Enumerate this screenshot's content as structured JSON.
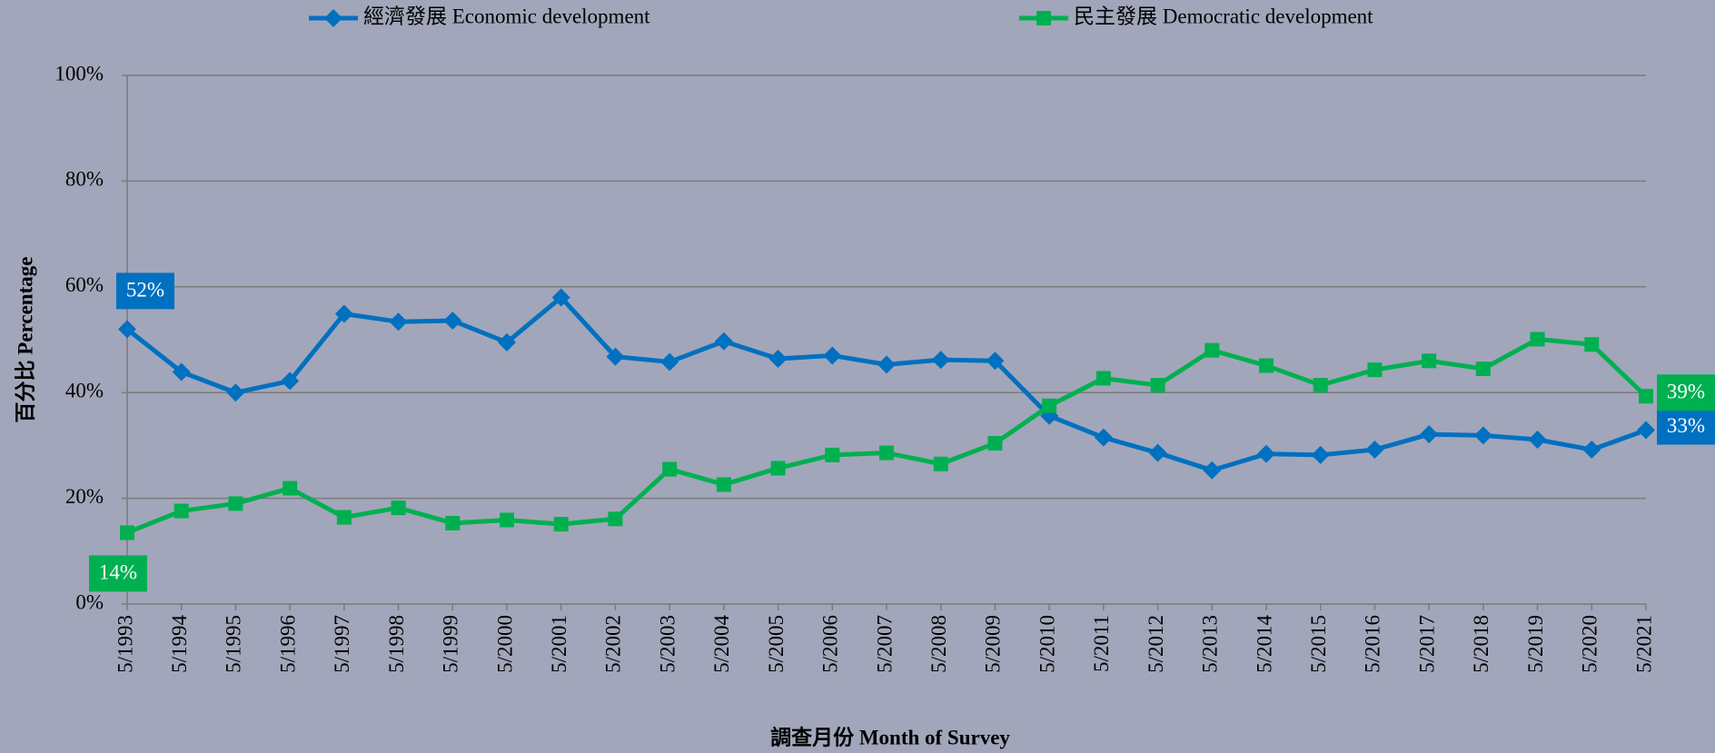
{
  "chart_data": {
    "type": "line",
    "x_label": "調查月份 Month of Survey",
    "y_label": "百分比 Percentage",
    "categories": [
      "5/1993",
      "5/1994",
      "5/1995",
      "5/1996",
      "5/1997",
      "5/1998",
      "5/1999",
      "5/2000",
      "5/2001",
      "5/2002",
      "5/2003",
      "5/2004",
      "5/2005",
      "5/2006",
      "5/2007",
      "5/2008",
      "5/2009",
      "5/2010",
      "5/2011",
      "5/2012",
      "5/2013",
      "5/2014",
      "5/2015",
      "5/2016",
      "5/2017",
      "5/2018",
      "5/2019",
      "5/2020",
      "5/2021"
    ],
    "series": [
      {
        "name": "經濟發展 Economic development",
        "color": "#0070c0",
        "marker": "diamond",
        "values": [
          52.0,
          43.9,
          40.0,
          42.2,
          54.9,
          53.4,
          53.6,
          49.5,
          58.0,
          46.8,
          45.8,
          49.7,
          46.4,
          47.0,
          45.3,
          46.2,
          46.0,
          35.6,
          31.5,
          28.6,
          25.3,
          28.4,
          28.2,
          29.2,
          32.1,
          31.9,
          31.1,
          29.2,
          32.9
        ],
        "value_labels": [
          "52%",
          null,
          null,
          null,
          null,
          null,
          null,
          null,
          null,
          null,
          null,
          null,
          null,
          null,
          null,
          null,
          null,
          null,
          null,
          null,
          null,
          null,
          null,
          null,
          null,
          null,
          null,
          null,
          "33%"
        ]
      },
      {
        "name": "民主發展 Democratic development",
        "color": "#00b050",
        "marker": "square",
        "values": [
          13.5,
          17.6,
          19.0,
          21.9,
          16.4,
          18.2,
          15.3,
          15.9,
          15.1,
          16.1,
          25.5,
          22.6,
          25.7,
          28.2,
          28.6,
          26.5,
          30.4,
          37.5,
          42.7,
          41.4,
          48.0,
          45.1,
          41.4,
          44.3,
          46.0,
          44.5,
          50.1,
          49.1,
          39.3
        ],
        "value_labels": [
          "14%",
          null,
          null,
          null,
          null,
          null,
          null,
          null,
          null,
          null,
          null,
          null,
          null,
          null,
          null,
          null,
          null,
          null,
          null,
          null,
          null,
          null,
          null,
          null,
          null,
          null,
          null,
          null,
          "39%"
        ]
      }
    ],
    "ylim": [
      0,
      100
    ],
    "yticks": [
      {
        "value": 0,
        "label": "0%"
      },
      {
        "value": 20,
        "label": "20%"
      },
      {
        "value": 40,
        "label": "40%"
      },
      {
        "value": 60,
        "label": "60%"
      },
      {
        "value": 80,
        "label": "80%"
      },
      {
        "value": 100,
        "label": "100%"
      }
    ],
    "grid": true,
    "legend": "top"
  }
}
